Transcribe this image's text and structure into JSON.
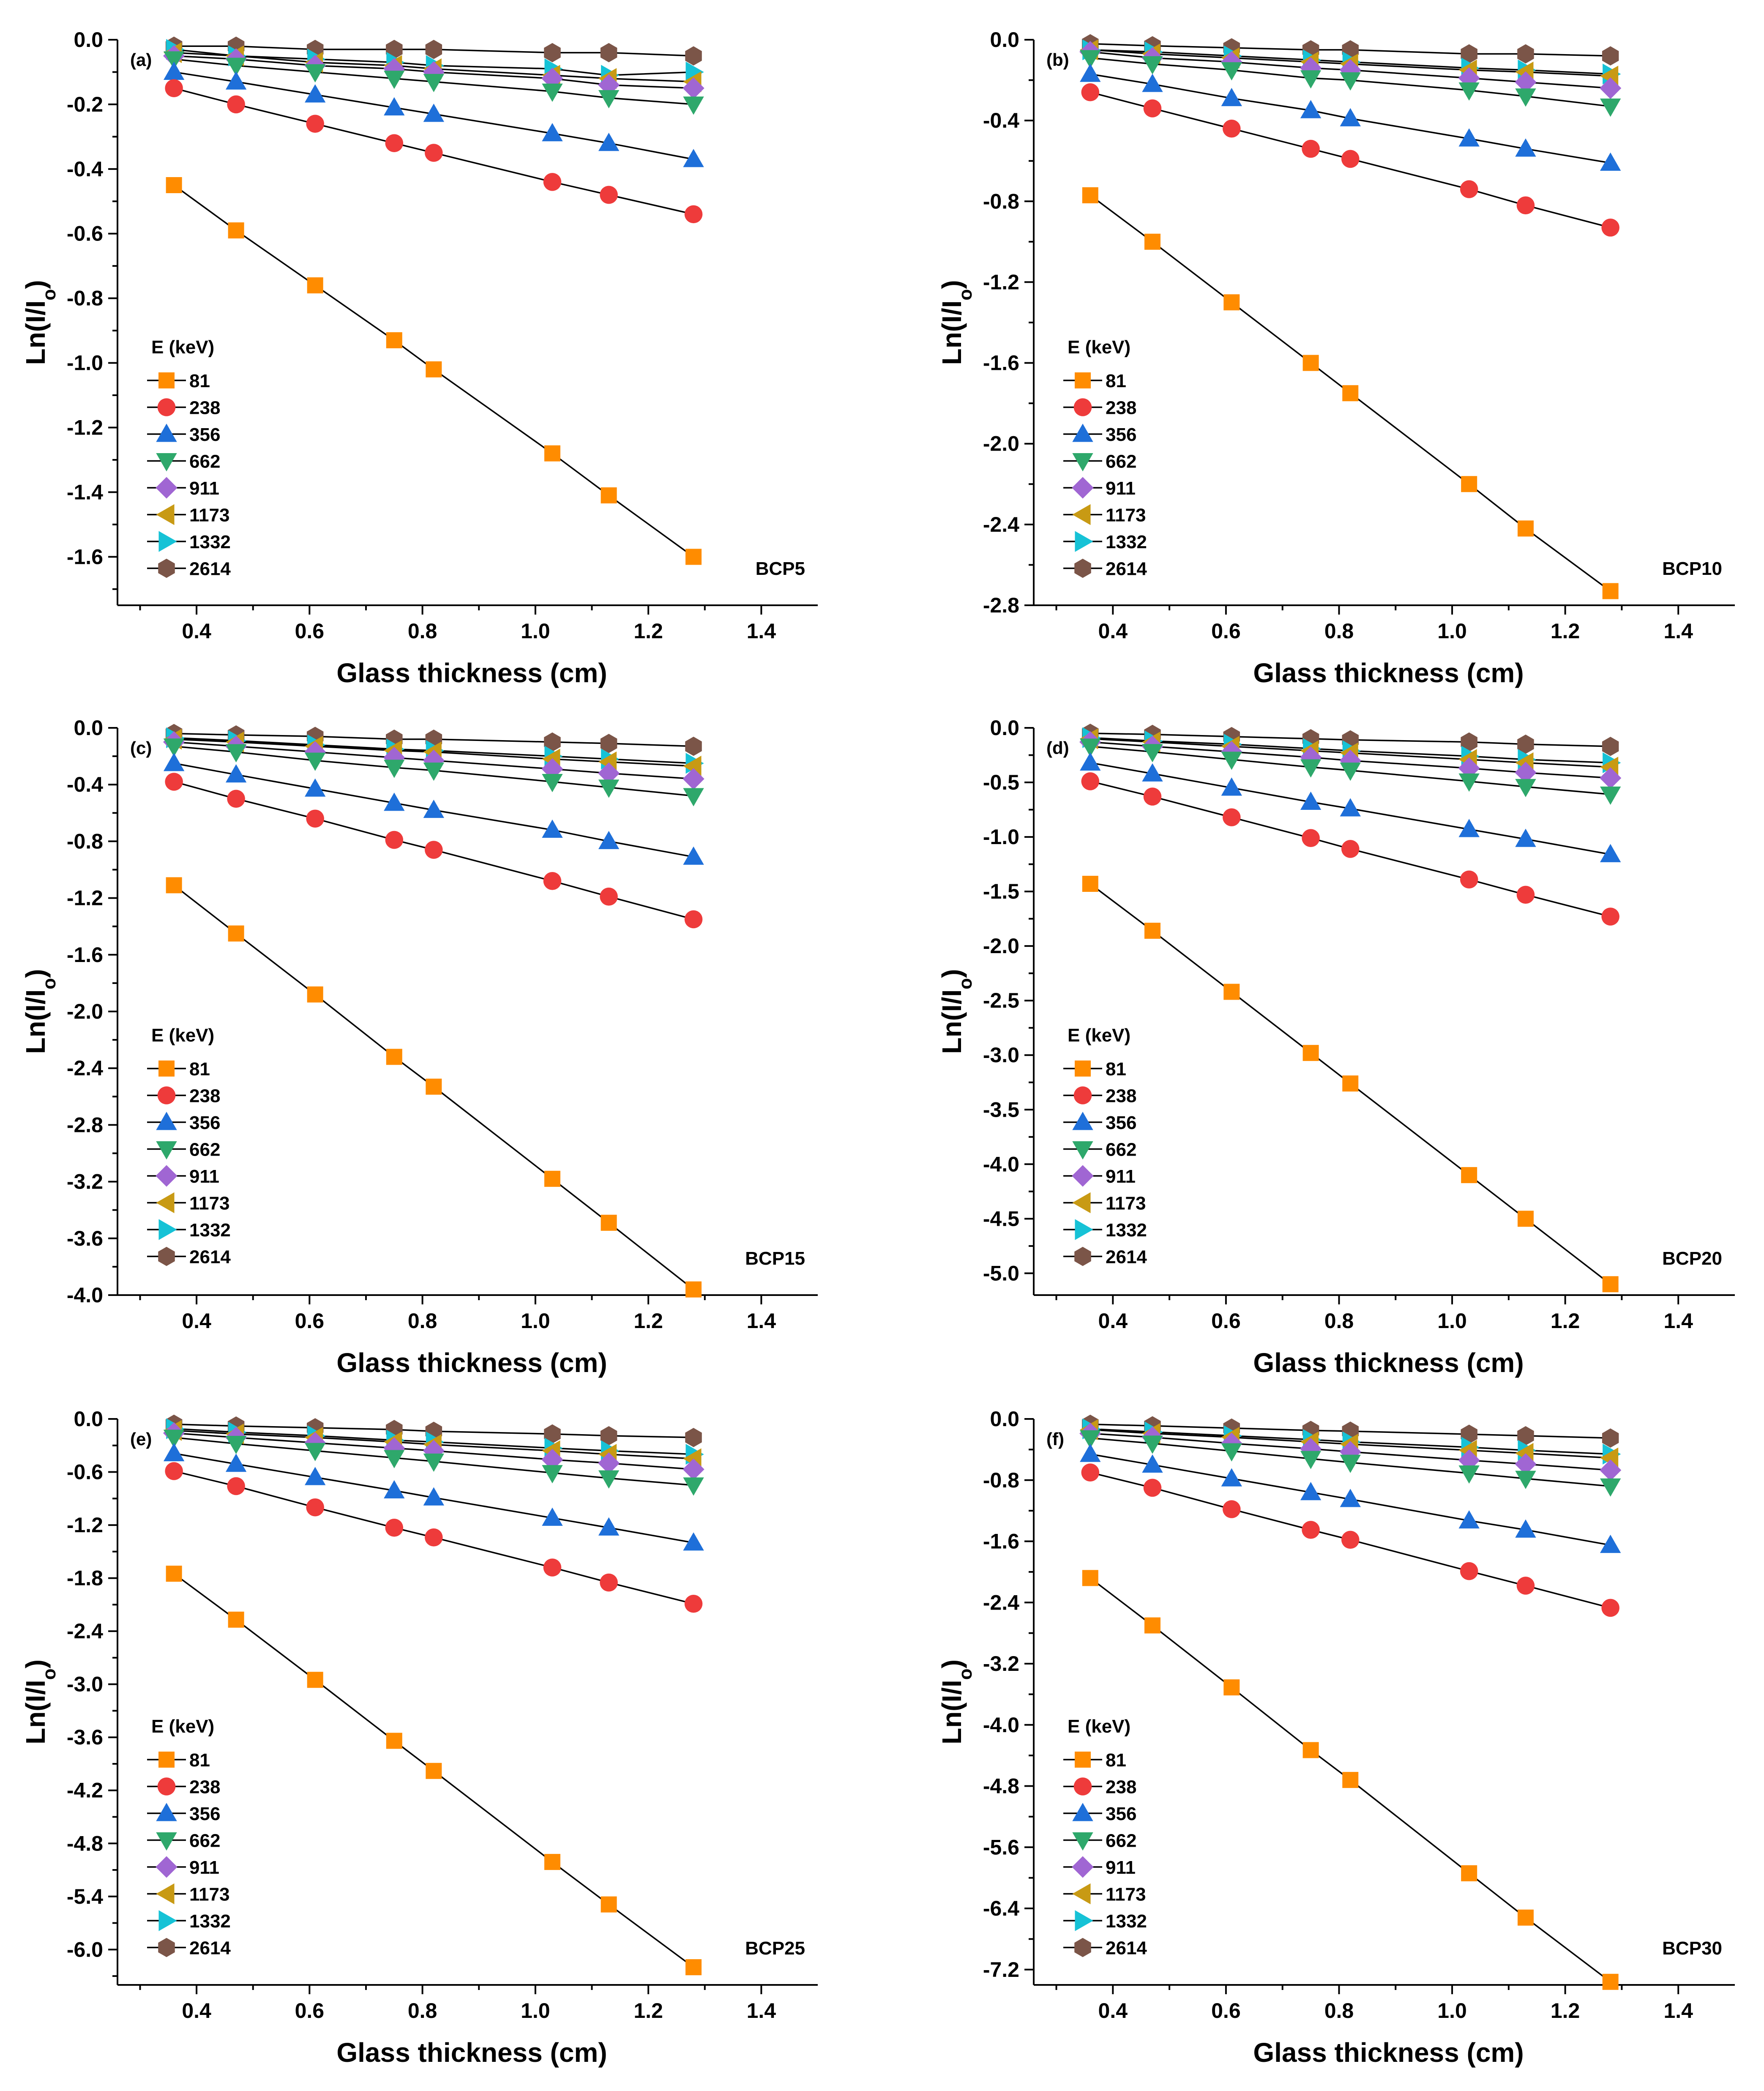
{
  "figure": {
    "x_label": "Glass thickness (cm)",
    "y_label_main": "Ln(I/I",
    "y_label_sub": "o",
    "y_label_close": ")",
    "legend_title": "E (keV)"
  },
  "series_styles": [
    {
      "energy": "81",
      "marker": "square",
      "color": "#FF8C00"
    },
    {
      "energy": "238",
      "marker": "circle",
      "color": "#EE3B3B"
    },
    {
      "energy": "356",
      "marker": "triangle-up",
      "color": "#1E6FD9"
    },
    {
      "energy": "662",
      "marker": "triangle-down",
      "color": "#2EA86B"
    },
    {
      "energy": "911",
      "marker": "diamond",
      "color": "#A066D3"
    },
    {
      "energy": "1173",
      "marker": "triangle-left",
      "color": "#C89A14"
    },
    {
      "energy": "1332",
      "marker": "triangle-right",
      "color": "#16C2D6"
    },
    {
      "energy": "2614",
      "marker": "hexagon",
      "color": "#7B5548"
    }
  ],
  "chart_data": [
    {
      "type": "line",
      "panel": "(a)",
      "sample": "BCP5",
      "title": "",
      "xlabel": "Glass thickness (cm)",
      "ylabel": "Ln(I/Io)",
      "xlim": [
        0.26,
        1.5
      ],
      "ylim": [
        -1.75,
        0.0
      ],
      "xticks": [
        0.4,
        0.6,
        0.8,
        1.0,
        1.2,
        1.4
      ],
      "yticks": [
        0.0,
        -0.2,
        -0.4,
        -0.6,
        -0.8,
        -1.0,
        -1.2,
        -1.4,
        -1.6
      ],
      "ydec": 1,
      "x": [
        0.36,
        0.47,
        0.61,
        0.75,
        0.82,
        1.03,
        1.13,
        1.28
      ],
      "series": [
        {
          "name": "81",
          "values": [
            -0.45,
            -0.59,
            -0.76,
            -0.93,
            -1.02,
            -1.28,
            -1.41,
            -1.6
          ]
        },
        {
          "name": "238",
          "values": [
            -0.15,
            -0.2,
            -0.26,
            -0.32,
            -0.35,
            -0.44,
            -0.48,
            -0.54
          ]
        },
        {
          "name": "356",
          "values": [
            -0.1,
            -0.13,
            -0.17,
            -0.21,
            -0.23,
            -0.29,
            -0.32,
            -0.37
          ]
        },
        {
          "name": "662",
          "values": [
            -0.06,
            -0.08,
            -0.1,
            -0.12,
            -0.13,
            -0.16,
            -0.18,
            -0.2
          ]
        },
        {
          "name": "911",
          "values": [
            -0.05,
            -0.06,
            -0.08,
            -0.09,
            -0.1,
            -0.12,
            -0.14,
            -0.15
          ]
        },
        {
          "name": "1173",
          "values": [
            -0.04,
            -0.05,
            -0.07,
            -0.08,
            -0.09,
            -0.11,
            -0.12,
            -0.13
          ]
        },
        {
          "name": "1332",
          "values": [
            -0.03,
            -0.05,
            -0.06,
            -0.07,
            -0.08,
            -0.09,
            -0.11,
            -0.1
          ]
        },
        {
          "name": "2614",
          "values": [
            -0.02,
            -0.02,
            -0.03,
            -0.03,
            -0.03,
            -0.04,
            -0.04,
            -0.05
          ]
        }
      ]
    },
    {
      "type": "line",
      "panel": "(b)",
      "sample": "BCP10",
      "title": "",
      "xlabel": "Glass thickness (cm)",
      "ylabel": "Ln(I/Io)",
      "xlim": [
        0.26,
        1.5
      ],
      "ylim": [
        -2.8,
        0.0
      ],
      "xticks": [
        0.4,
        0.6,
        0.8,
        1.0,
        1.2,
        1.4
      ],
      "yticks": [
        0.0,
        -0.4,
        -0.8,
        -1.2,
        -1.6,
        -2.0,
        -2.4,
        -2.8
      ],
      "ydec": 1,
      "x": [
        0.36,
        0.47,
        0.61,
        0.75,
        0.82,
        1.03,
        1.13,
        1.28
      ],
      "series": [
        {
          "name": "81",
          "values": [
            -0.77,
            -1.0,
            -1.3,
            -1.6,
            -1.75,
            -2.2,
            -2.42,
            -2.73
          ]
        },
        {
          "name": "238",
          "values": [
            -0.26,
            -0.34,
            -0.44,
            -0.54,
            -0.59,
            -0.74,
            -0.82,
            -0.93
          ]
        },
        {
          "name": "356",
          "values": [
            -0.17,
            -0.22,
            -0.29,
            -0.35,
            -0.39,
            -0.49,
            -0.54,
            -0.61
          ]
        },
        {
          "name": "662",
          "values": [
            -0.09,
            -0.12,
            -0.15,
            -0.19,
            -0.2,
            -0.25,
            -0.28,
            -0.33
          ]
        },
        {
          "name": "911",
          "values": [
            -0.06,
            -0.09,
            -0.11,
            -0.14,
            -0.15,
            -0.19,
            -0.21,
            -0.24
          ]
        },
        {
          "name": "1173",
          "values": [
            -0.05,
            -0.07,
            -0.09,
            -0.11,
            -0.12,
            -0.15,
            -0.16,
            -0.18
          ]
        },
        {
          "name": "1332",
          "values": [
            -0.05,
            -0.06,
            -0.08,
            -0.1,
            -0.11,
            -0.14,
            -0.15,
            -0.17
          ]
        },
        {
          "name": "2614",
          "values": [
            -0.02,
            -0.03,
            -0.04,
            -0.05,
            -0.05,
            -0.07,
            -0.07,
            -0.08
          ]
        }
      ]
    },
    {
      "type": "line",
      "panel": "(c)",
      "sample": "BCP15",
      "title": "",
      "xlabel": "Glass thickness (cm)",
      "ylabel": "Ln(I/Io)",
      "xlim": [
        0.26,
        1.5
      ],
      "ylim": [
        -4.0,
        0.0
      ],
      "xticks": [
        0.4,
        0.6,
        0.8,
        1.0,
        1.2,
        1.4
      ],
      "yticks": [
        0.0,
        -0.4,
        -0.8,
        -1.2,
        -1.6,
        -2.0,
        -2.4,
        -2.8,
        -3.2,
        -3.6,
        -4.0
      ],
      "ydec": 1,
      "x": [
        0.36,
        0.47,
        0.61,
        0.75,
        0.82,
        1.03,
        1.13,
        1.28
      ],
      "series": [
        {
          "name": "81",
          "values": [
            -1.11,
            -1.45,
            -1.88,
            -2.32,
            -2.53,
            -3.18,
            -3.49,
            -3.96
          ]
        },
        {
          "name": "238",
          "values": [
            -0.38,
            -0.5,
            -0.64,
            -0.79,
            -0.86,
            -1.08,
            -1.19,
            -1.35
          ]
        },
        {
          "name": "356",
          "values": [
            -0.25,
            -0.33,
            -0.43,
            -0.53,
            -0.58,
            -0.72,
            -0.8,
            -0.91
          ]
        },
        {
          "name": "662",
          "values": [
            -0.13,
            -0.17,
            -0.23,
            -0.28,
            -0.3,
            -0.38,
            -0.42,
            -0.48
          ]
        },
        {
          "name": "911",
          "values": [
            -0.1,
            -0.13,
            -0.17,
            -0.21,
            -0.23,
            -0.29,
            -0.32,
            -0.36
          ]
        },
        {
          "name": "1173",
          "values": [
            -0.08,
            -0.1,
            -0.13,
            -0.16,
            -0.17,
            -0.22,
            -0.24,
            -0.27
          ]
        },
        {
          "name": "1332",
          "values": [
            -0.07,
            -0.09,
            -0.12,
            -0.15,
            -0.16,
            -0.2,
            -0.22,
            -0.25
          ]
        },
        {
          "name": "2614",
          "values": [
            -0.04,
            -0.05,
            -0.06,
            -0.08,
            -0.08,
            -0.1,
            -0.11,
            -0.13
          ]
        }
      ]
    },
    {
      "type": "line",
      "panel": "(d)",
      "sample": "BCP20",
      "title": "",
      "xlabel": "Glass thickness (cm)",
      "ylabel": "Ln(I/Io)",
      "xlim": [
        0.26,
        1.5
      ],
      "ylim": [
        -5.2,
        0.0
      ],
      "xticks": [
        0.4,
        0.6,
        0.8,
        1.0,
        1.2,
        1.4
      ],
      "yticks": [
        0.0,
        -0.5,
        -1.0,
        -1.5,
        -2.0,
        -2.5,
        -3.0,
        -3.5,
        -4.0,
        -4.5,
        -5.0
      ],
      "ydec": 1,
      "x": [
        0.36,
        0.47,
        0.61,
        0.75,
        0.82,
        1.03,
        1.13,
        1.28
      ],
      "series": [
        {
          "name": "81",
          "values": [
            -1.43,
            -1.86,
            -2.42,
            -2.98,
            -3.26,
            -4.1,
            -4.5,
            -5.1
          ]
        },
        {
          "name": "238",
          "values": [
            -0.49,
            -0.63,
            -0.82,
            -1.01,
            -1.11,
            -1.39,
            -1.53,
            -1.73
          ]
        },
        {
          "name": "356",
          "values": [
            -0.32,
            -0.42,
            -0.55,
            -0.68,
            -0.74,
            -0.93,
            -1.02,
            -1.16
          ]
        },
        {
          "name": "662",
          "values": [
            -0.17,
            -0.22,
            -0.29,
            -0.36,
            -0.39,
            -0.49,
            -0.54,
            -0.61
          ]
        },
        {
          "name": "911",
          "values": [
            -0.13,
            -0.17,
            -0.22,
            -0.27,
            -0.3,
            -0.37,
            -0.41,
            -0.46
          ]
        },
        {
          "name": "1173",
          "values": [
            -0.1,
            -0.13,
            -0.17,
            -0.21,
            -0.23,
            -0.29,
            -0.32,
            -0.36
          ]
        },
        {
          "name": "1332",
          "values": [
            -0.09,
            -0.12,
            -0.15,
            -0.19,
            -0.21,
            -0.26,
            -0.29,
            -0.32
          ]
        },
        {
          "name": "2614",
          "values": [
            -0.05,
            -0.06,
            -0.08,
            -0.1,
            -0.11,
            -0.13,
            -0.15,
            -0.17
          ]
        }
      ]
    },
    {
      "type": "line",
      "panel": "(e)",
      "sample": "BCP25",
      "title": "",
      "xlabel": "Glass thickness (cm)",
      "ylabel": "Ln(I/Io)",
      "xlim": [
        0.26,
        1.5
      ],
      "ylim": [
        -6.4,
        0.0
      ],
      "xticks": [
        0.4,
        0.6,
        0.8,
        1.0,
        1.2,
        1.4
      ],
      "yticks": [
        0.0,
        -0.6,
        -1.2,
        -1.8,
        -2.4,
        -3.0,
        -3.6,
        -4.2,
        -4.8,
        -5.4,
        -6.0
      ],
      "ydec": 1,
      "x": [
        0.36,
        0.47,
        0.61,
        0.75,
        0.82,
        1.03,
        1.13,
        1.28
      ],
      "series": [
        {
          "name": "81",
          "values": [
            -1.75,
            -2.27,
            -2.95,
            -3.64,
            -3.98,
            -5.01,
            -5.49,
            -6.2
          ]
        },
        {
          "name": "238",
          "values": [
            -0.59,
            -0.76,
            -1.0,
            -1.23,
            -1.34,
            -1.68,
            -1.85,
            -2.09
          ]
        },
        {
          "name": "356",
          "values": [
            -0.39,
            -0.51,
            -0.66,
            -0.81,
            -0.89,
            -1.12,
            -1.23,
            -1.4
          ]
        },
        {
          "name": "662",
          "values": [
            -0.21,
            -0.28,
            -0.36,
            -0.44,
            -0.48,
            -0.61,
            -0.67,
            -0.75
          ]
        },
        {
          "name": "911",
          "values": [
            -0.16,
            -0.21,
            -0.27,
            -0.33,
            -0.36,
            -0.46,
            -0.5,
            -0.57
          ]
        },
        {
          "name": "1173",
          "values": [
            -0.13,
            -0.17,
            -0.21,
            -0.26,
            -0.29,
            -0.36,
            -0.4,
            -0.45
          ]
        },
        {
          "name": "1332",
          "values": [
            -0.11,
            -0.15,
            -0.19,
            -0.24,
            -0.26,
            -0.33,
            -0.36,
            -0.4
          ]
        },
        {
          "name": "2614",
          "values": [
            -0.06,
            -0.08,
            -0.1,
            -0.12,
            -0.14,
            -0.17,
            -0.19,
            -0.21
          ]
        }
      ]
    },
    {
      "type": "line",
      "panel": "(f)",
      "sample": "BCP30",
      "title": "",
      "xlabel": "Glass thickness (cm)",
      "ylabel": "Ln(I/Io)",
      "xlim": [
        0.26,
        1.5
      ],
      "ylim": [
        -7.4,
        0.0
      ],
      "xticks": [
        0.4,
        0.6,
        0.8,
        1.0,
        1.2,
        1.4
      ],
      "yticks": [
        0.0,
        -0.8,
        -1.6,
        -2.4,
        -3.2,
        -4.0,
        -4.8,
        -5.6,
        -6.4,
        -7.2
      ],
      "ydec": 1,
      "x": [
        0.36,
        0.47,
        0.61,
        0.75,
        0.82,
        1.03,
        1.13,
        1.28
      ],
      "series": [
        {
          "name": "81",
          "values": [
            -2.08,
            -2.7,
            -3.51,
            -4.33,
            -4.72,
            -5.94,
            -6.52,
            -7.36
          ]
        },
        {
          "name": "238",
          "values": [
            -0.7,
            -0.9,
            -1.18,
            -1.45,
            -1.58,
            -1.99,
            -2.18,
            -2.47
          ]
        },
        {
          "name": "356",
          "values": [
            -0.46,
            -0.6,
            -0.78,
            -0.96,
            -1.05,
            -1.33,
            -1.45,
            -1.65
          ]
        },
        {
          "name": "662",
          "values": [
            -0.25,
            -0.32,
            -0.42,
            -0.52,
            -0.57,
            -0.71,
            -0.78,
            -0.88
          ]
        },
        {
          "name": "911",
          "values": [
            -0.19,
            -0.24,
            -0.32,
            -0.39,
            -0.43,
            -0.54,
            -0.59,
            -0.67
          ]
        },
        {
          "name": "1173",
          "values": [
            -0.14,
            -0.19,
            -0.24,
            -0.3,
            -0.33,
            -0.41,
            -0.45,
            -0.51
          ]
        },
        {
          "name": "1332",
          "values": [
            -0.13,
            -0.17,
            -0.22,
            -0.27,
            -0.3,
            -0.37,
            -0.41,
            -0.46
          ]
        },
        {
          "name": "2614",
          "values": [
            -0.07,
            -0.09,
            -0.12,
            -0.15,
            -0.16,
            -0.2,
            -0.22,
            -0.25
          ]
        }
      ]
    }
  ]
}
